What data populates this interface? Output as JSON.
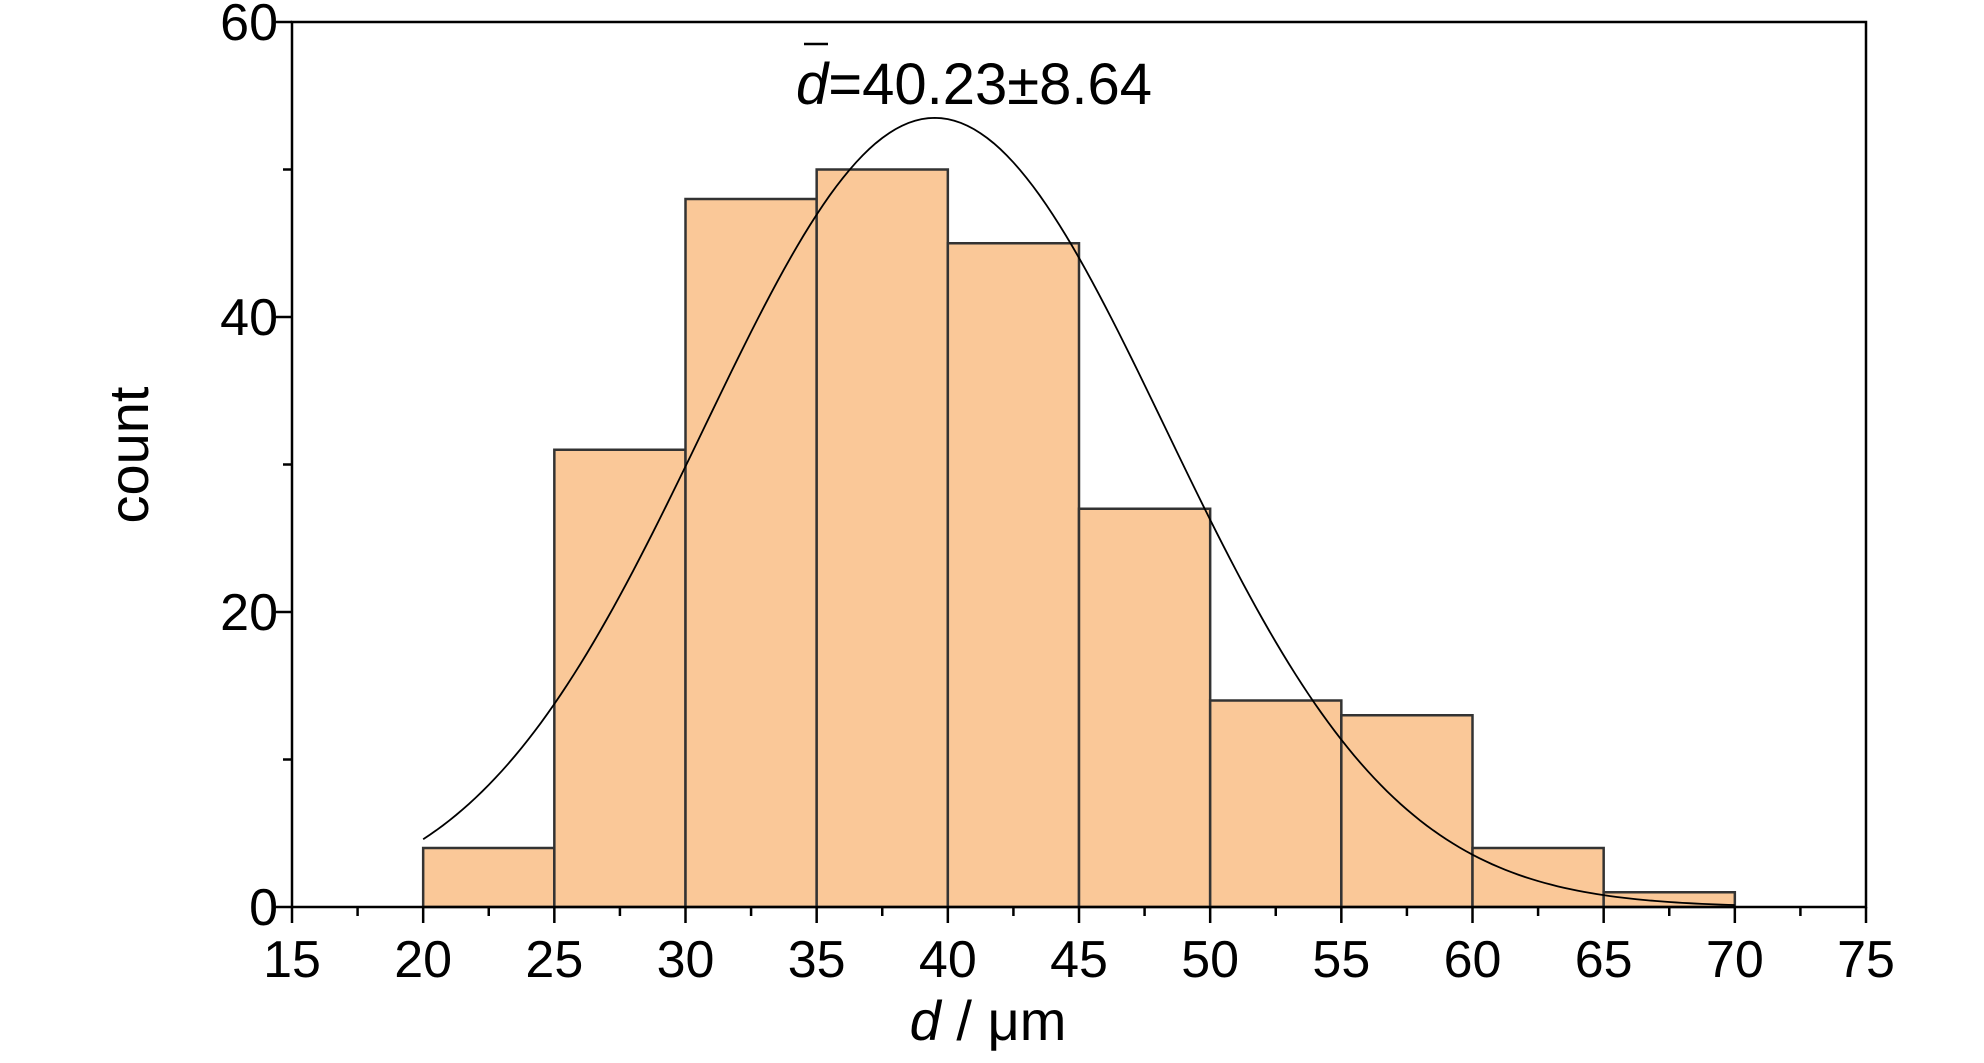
{
  "chart_data": {
    "type": "bar",
    "bin_edges": [
      20,
      25,
      30,
      35,
      40,
      45,
      50,
      55,
      60,
      65,
      70
    ],
    "values": [
      4,
      31,
      48,
      50,
      45,
      27,
      14,
      13,
      4,
      1
    ],
    "xlim": [
      15,
      75
    ],
    "ylim": [
      0,
      60
    ],
    "x_ticks": [
      15,
      20,
      25,
      30,
      35,
      40,
      45,
      50,
      55,
      60,
      65,
      70,
      75
    ],
    "y_ticks": [
      0,
      20,
      40,
      60
    ],
    "xlabel_symbol": "d",
    "xlabel_unit": " / μm",
    "ylabel": "count",
    "annotation": {
      "symbol": "d",
      "text": "=40.23±8.64"
    },
    "fit_curve": {
      "type": "normal",
      "mean": 39.5,
      "sd": 8.8,
      "peak": 53.5,
      "x_range": [
        20,
        70
      ]
    },
    "colors": {
      "bar_fill": "#fac898",
      "bar_stroke": "#333333",
      "curve": "#000000"
    }
  }
}
